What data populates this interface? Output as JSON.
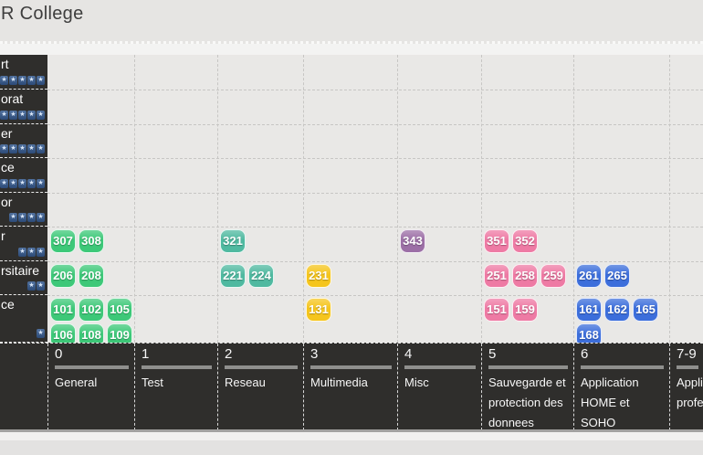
{
  "header": {
    "title": "R College"
  },
  "sidebar": {
    "rows": [
      {
        "label": "rt",
        "stars": 5
      },
      {
        "label": "orat",
        "stars": 5
      },
      {
        "label": "er",
        "stars": 5
      },
      {
        "label": "ce",
        "stars": 5
      },
      {
        "label": "or",
        "stars": 4
      },
      {
        "label": "r",
        "stars": 3
      },
      {
        "label": "rsitaire",
        "stars": 2
      },
      {
        "label": "ce",
        "stars": 1
      }
    ],
    "star_icon": "★"
  },
  "axis": {
    "columns": [
      {
        "index": "0",
        "label": "General"
      },
      {
        "index": "1",
        "label": "Test"
      },
      {
        "index": "2",
        "label": "Reseau"
      },
      {
        "index": "3",
        "label": "Multimedia"
      },
      {
        "index": "4",
        "label": "Misc"
      },
      {
        "index": "5",
        "label": "Sauvegarde et\nprotection des\ndonnees"
      },
      {
        "index": "6",
        "label": "Application\nHOME et\nSOHO"
      },
      {
        "index": "7-9",
        "label": "Appli\nprofe"
      }
    ]
  },
  "colors": {
    "green": "#3dc878",
    "teal": "#4fb9a0",
    "yellow": "#f5c51d",
    "purple": "#9c6fa6",
    "pink": "#ee7aa4",
    "blue": "#3c6edb",
    "panel_dark": "#2f2e2c",
    "star_tile": "#2c4a77"
  },
  "chart_data": {
    "type": "table",
    "title": "R College",
    "x_categories": [
      "0 General",
      "1 Test",
      "2 Reseau",
      "3 Multimedia",
      "4 Misc",
      "5 Sauvegarde et protection des donnees",
      "6 Application HOME et SOHO",
      "7-9 Appli profe"
    ],
    "y_categories": [
      {
        "label": "rt",
        "rating_stars": 5
      },
      {
        "label": "orat",
        "rating_stars": 5
      },
      {
        "label": "er",
        "rating_stars": 5
      },
      {
        "label": "ce",
        "rating_stars": 5
      },
      {
        "label": "or",
        "rating_stars": 4
      },
      {
        "label": "r",
        "rating_stars": 3
      },
      {
        "label": "rsitaire",
        "rating_stars": 2
      },
      {
        "label": "ce",
        "rating_stars": 1
      }
    ],
    "legend_position": "none",
    "grid": "dashed",
    "cells": [
      {
        "row_index": 5,
        "col_index": 0,
        "color": "green",
        "values": [
          307,
          308
        ]
      },
      {
        "row_index": 5,
        "col_index": 2,
        "color": "teal",
        "values": [
          321
        ]
      },
      {
        "row_index": 5,
        "col_index": 4,
        "color": "purple",
        "values": [
          343
        ]
      },
      {
        "row_index": 5,
        "col_index": 5,
        "color": "pink",
        "values": [
          351,
          352
        ]
      },
      {
        "row_index": 6,
        "col_index": 0,
        "color": "green",
        "values": [
          206,
          208
        ]
      },
      {
        "row_index": 6,
        "col_index": 2,
        "color": "teal",
        "values": [
          221,
          224
        ]
      },
      {
        "row_index": 6,
        "col_index": 3,
        "color": "yellow",
        "values": [
          231
        ]
      },
      {
        "row_index": 6,
        "col_index": 5,
        "color": "pink",
        "values": [
          251,
          258,
          259
        ]
      },
      {
        "row_index": 6,
        "col_index": 6,
        "color": "blue",
        "values": [
          261,
          265
        ]
      },
      {
        "row_index": 7,
        "col_index": 0,
        "color": "green",
        "values": [
          101,
          102,
          105,
          106,
          108,
          109
        ]
      },
      {
        "row_index": 7,
        "col_index": 3,
        "color": "yellow",
        "values": [
          131
        ]
      },
      {
        "row_index": 7,
        "col_index": 5,
        "color": "pink",
        "values": [
          151,
          159
        ]
      },
      {
        "row_index": 7,
        "col_index": 6,
        "color": "blue",
        "values": [
          161,
          162,
          165,
          168
        ]
      }
    ]
  }
}
